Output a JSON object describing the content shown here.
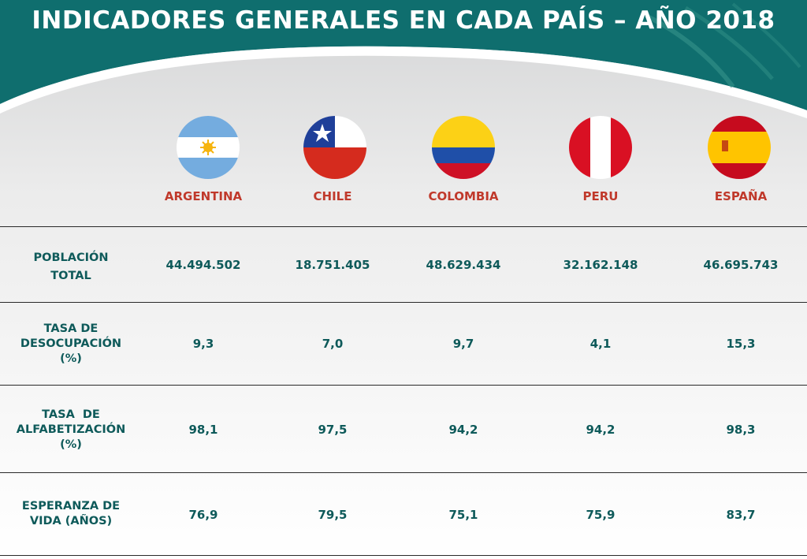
{
  "title": "INDICADORES GENERALES EN CADA PAÍS – AÑO 2018",
  "colors": {
    "header_teal": "#0f6e6e",
    "country_red": "#c0392b",
    "text_teal": "#0e5a5a"
  },
  "countries": [
    {
      "name": "ARGENTINA",
      "flag": "argentina-flag-icon"
    },
    {
      "name": "CHILE",
      "flag": "chile-flag-icon"
    },
    {
      "name": "COLOMBIA",
      "flag": "colombia-flag-icon"
    },
    {
      "name": "PERU",
      "flag": "peru-flag-icon"
    },
    {
      "name": "ESPAÑA",
      "flag": "spain-flag-icon"
    }
  ],
  "rows": [
    {
      "label_lines": [
        "POBLACIÓN",
        "TOTAL"
      ],
      "values": [
        "44.494.502",
        "18.751.405",
        "48.629.434",
        "32.162.148",
        "46.695.743"
      ]
    },
    {
      "label_lines": [
        "TASA DE",
        "DESOCUPACIÓN",
        "(%)"
      ],
      "values": [
        "9,3",
        "7,0",
        "9,7",
        "4,1",
        "15,3"
      ]
    },
    {
      "label_lines": [
        "TASA  DE",
        "ALFABETIZACIÓN",
        "(%)"
      ],
      "values": [
        "98,1",
        "97,5",
        "94,2",
        "94,2",
        "98,3"
      ]
    },
    {
      "label_lines": [
        "ESPERANZA DE",
        "VIDA (AÑOS)"
      ],
      "values": [
        "76,9",
        "79,5",
        "75,1",
        "75,9",
        "83,7"
      ]
    }
  ]
}
